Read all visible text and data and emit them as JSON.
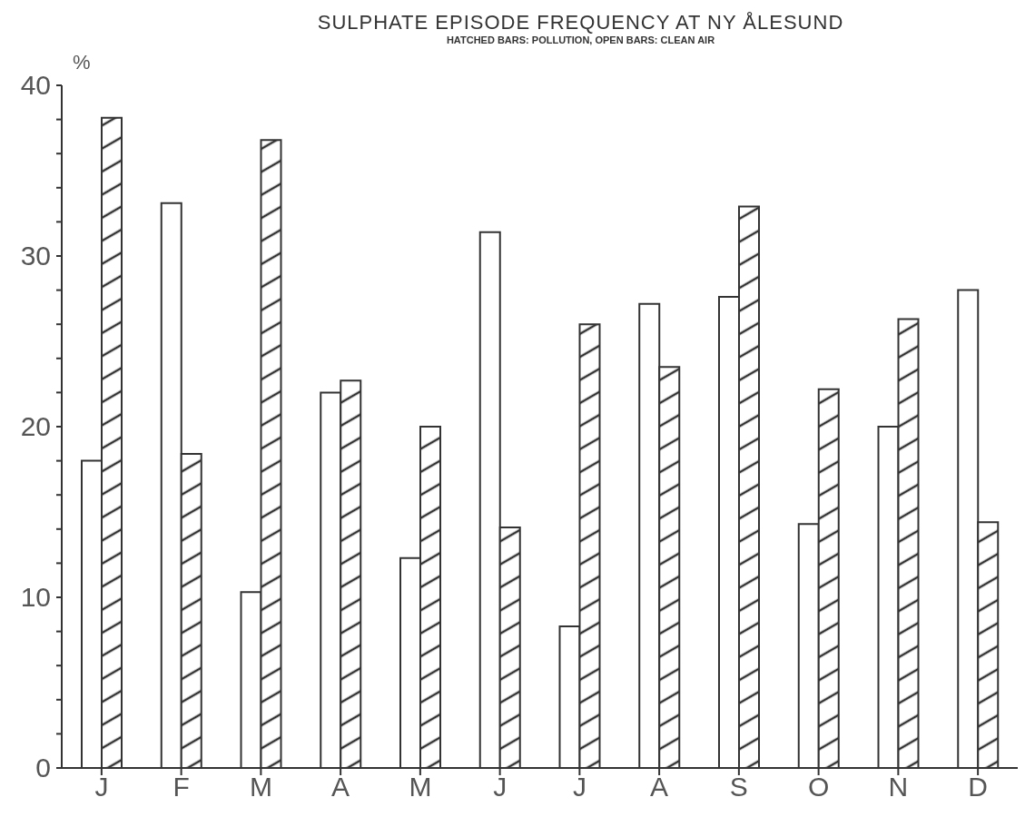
{
  "chart_data": {
    "type": "bar",
    "title": "SULPHATE EPISODE FREQUENCY AT NY ÅLESUND",
    "subtitle": "HATCHED BARS: POLLUTION, OPEN BARS: CLEAN AIR",
    "ylabel": "%",
    "categories": [
      "J",
      "F",
      "M",
      "A",
      "M",
      "J",
      "J",
      "A",
      "S",
      "O",
      "N",
      "D"
    ],
    "series": [
      {
        "color": "#ffffff",
        "values": [
          18.0,
          33.1,
          10.3,
          22.0,
          12.3,
          31.4,
          8.3,
          27.2,
          27.6,
          14.3,
          20.0,
          28.0
        ]
      },
      {
        "color": "#333333",
        "values": [
          38.1,
          18.4,
          36.8,
          22.7,
          20.0,
          14.1,
          26.0,
          23.5,
          32.9,
          22.2,
          26.3,
          14.4
        ]
      }
    ],
    "ylim": [
      0,
      40
    ],
    "yticks": [
      0,
      {
        "value": 2,
        "label": null
      },
      {
        "value": 4,
        "label": null
      },
      {
        "value": 6,
        "label": null
      },
      {
        "value": 8,
        "label": null
      },
      10,
      {
        "value": 12,
        "label": null
      },
      {
        "value": 14,
        "label": null
      },
      {
        "value": 16,
        "label": null
      },
      {
        "value": 18,
        "label": null
      },
      20,
      {
        "value": 22,
        "label": null
      },
      {
        "value": 24,
        "label": null
      },
      {
        "value": 26,
        "label": null
      },
      {
        "value": 28,
        "label": null
      },
      30,
      {
        "value": 32,
        "label": null
      },
      {
        "value": 34,
        "label": null
      },
      {
        "value": 36,
        "label": null
      },
      {
        "value": 38,
        "label": null
      },
      40
    ]
  }
}
